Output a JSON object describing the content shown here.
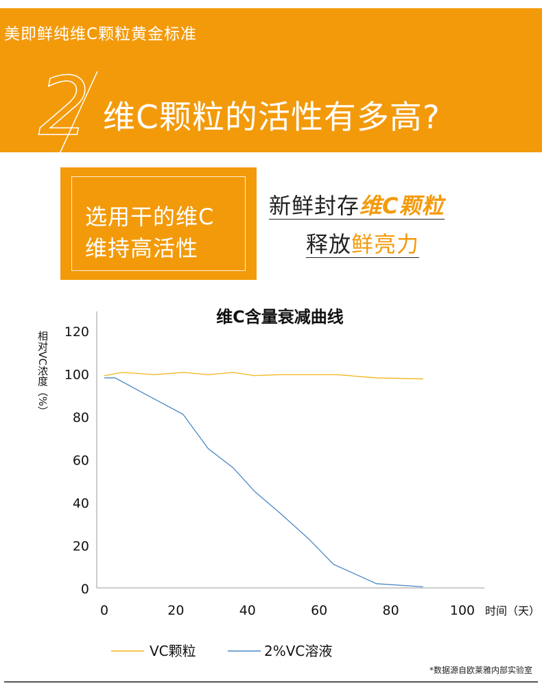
{
  "banner": {
    "subtitle": "美即鲜纯维C颗粒黄金标准",
    "number": "2",
    "title": "维C颗粒的活性有多高?"
  },
  "feature_box": {
    "line1": "选用干的维C",
    "line2": "维持高活性"
  },
  "slogan": {
    "line1_plain": "新鲜封存",
    "line1_accent": "维C颗粒",
    "line2_plain": "释放",
    "line2_accent": "鲜亮力"
  },
  "colors": {
    "brand_orange": "#f39a0b",
    "series_granule": "#f2b418",
    "series_solution": "#4a86c5"
  },
  "chart_data": {
    "type": "line",
    "title": "维C含量衰减曲线",
    "ylabel": "相对VC浓度（%）",
    "xlabel": "时间（天）",
    "xlim": [
      0,
      100
    ],
    "ylim": [
      0,
      120
    ],
    "xticks": [
      0,
      20,
      40,
      60,
      80,
      100
    ],
    "yticks": [
      0,
      20,
      40,
      60,
      80,
      100,
      120
    ],
    "grid": false,
    "legend": "bottom",
    "series": [
      {
        "name": "VC颗粒",
        "x": [
          0,
          5,
          14,
          22,
          29,
          36,
          42,
          49,
          56,
          65,
          76,
          89
        ],
        "y": [
          99,
          100.5,
          99.5,
          100.5,
          99.5,
          100.5,
          99,
          99.5,
          99.5,
          99.5,
          98,
          97.5
        ]
      },
      {
        "name": "2%VC溶液",
        "x": [
          0,
          3,
          13,
          22,
          29,
          36,
          42,
          49,
          57,
          64,
          76,
          89
        ],
        "y": [
          98,
          98,
          89,
          81,
          65,
          56,
          45,
          35,
          23,
          11,
          2,
          0.5
        ]
      }
    ]
  },
  "source_note": "*数据源自欧莱雅内部实验室"
}
